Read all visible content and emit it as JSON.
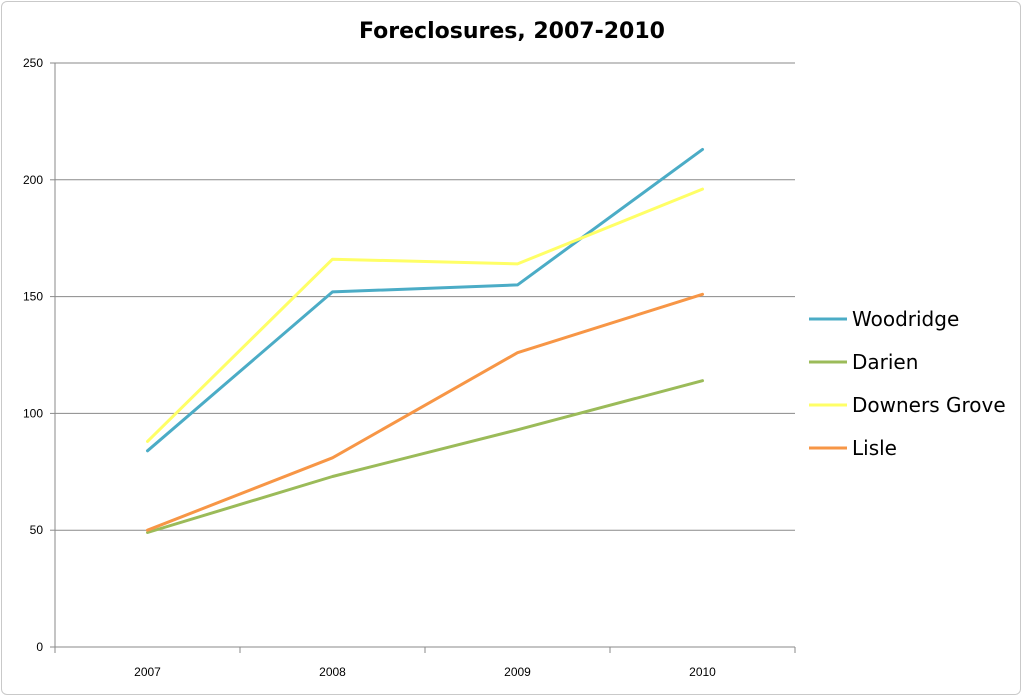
{
  "chart_data": {
    "type": "line",
    "title": "Foreclosures, 2007-2010",
    "xlabel": "",
    "ylabel": "",
    "categories": [
      "2007",
      "2008",
      "2009",
      "2010"
    ],
    "ylim": [
      0,
      250
    ],
    "yticks": [
      "0",
      "50",
      "100",
      "150",
      "200",
      "250"
    ],
    "grid": true,
    "legend_position": "right",
    "series": [
      {
        "name": "Woodridge",
        "color": "#4bacc6",
        "values": [
          84,
          152,
          155,
          213
        ]
      },
      {
        "name": "Darien",
        "color": "#9bbb59",
        "values": [
          49,
          73,
          93,
          114
        ]
      },
      {
        "name": "Downers Grove",
        "color": "#ffff66",
        "values": [
          88,
          166,
          164,
          196
        ]
      },
      {
        "name": "Lisle",
        "color": "#f79646",
        "values": [
          50,
          81,
          126,
          151
        ]
      }
    ]
  }
}
